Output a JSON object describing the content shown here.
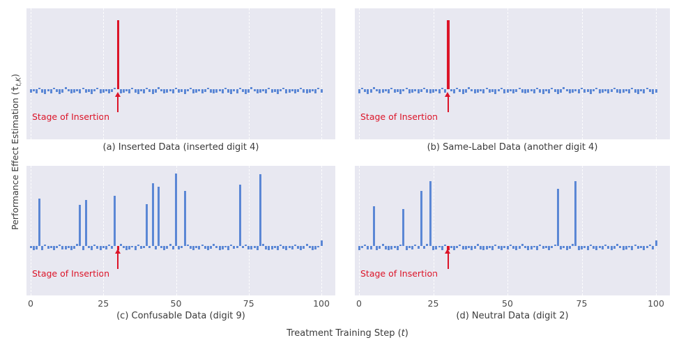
{
  "figure": {
    "ylabel": {
      "prefix": "Performance Effect Estimation (",
      "symbol": "τ̂",
      "subscript": "t,K",
      "suffix": ")"
    },
    "xlabel": {
      "prefix": "Treatment Training Step (",
      "italic": "t",
      "suffix": ")"
    }
  },
  "colors": {
    "bar": "#5b87d5",
    "highlight": "#dc1428",
    "panel_bg": "#e8e8f1",
    "grid": "#ffffff",
    "text": "#3a3a3a",
    "tick": "#4a4a4a"
  },
  "noise_pattern": [
    -0.045,
    -0.03,
    -0.055,
    0.02,
    -0.04,
    -0.06,
    -0.025,
    -0.05,
    0.018,
    -0.035,
    -0.058,
    -0.042,
    0.024,
    -0.03,
    -0.052,
    -0.046,
    -0.022,
    -0.057,
    0.02,
    -0.04,
    -0.033,
    -0.06,
    -0.028,
    0.016,
    -0.05,
    -0.044,
    -0.026,
    -0.056,
    -0.036,
    0.022,
    -0.047,
    -0.052
  ],
  "chart_data": [
    {
      "id": "a",
      "type": "bar",
      "caption": "(a) Inserted Data (inserted digit 4)",
      "annotation": "Stage of Insertion",
      "x_range": [
        0,
        100
      ],
      "ylim": [
        -0.65,
        1.05
      ],
      "insertion_step": 30,
      "insertion_value": 0.9,
      "noise_offset": 0,
      "gridlines": [
        0,
        25,
        50,
        75,
        100
      ],
      "xticks": [],
      "spikes": {}
    },
    {
      "id": "b",
      "type": "bar",
      "caption": "(b) Same-Label Data (another digit 4)",
      "annotation": "Stage of Insertion",
      "x_range": [
        0,
        100
      ],
      "ylim": [
        -0.65,
        1.05
      ],
      "insertion_step": 30,
      "insertion_value": 0.9,
      "noise_offset": 7,
      "gridlines": [
        0,
        25,
        50,
        75,
        100
      ],
      "xticks": [],
      "spikes": {}
    },
    {
      "id": "c",
      "type": "bar",
      "caption": "(c) Confusable Data (digit 9)",
      "annotation": "Stage of Insertion",
      "x_range": [
        0,
        100
      ],
      "ylim": [
        -0.65,
        1.05
      ],
      "insertion_step": 30,
      "insertion_value": -0.06,
      "noise_offset": 13,
      "gridlines": [
        0,
        25,
        50,
        75,
        100
      ],
      "xticks": [
        0,
        25,
        50,
        75,
        100
      ],
      "spikes": {
        "3": 0.62,
        "17": 0.54,
        "19": 0.6,
        "29": 0.66,
        "40": 0.55,
        "42": 0.82,
        "44": 0.78,
        "50": 0.95,
        "53": 0.72,
        "72": 0.8,
        "79": 0.94,
        "100": 0.07
      }
    },
    {
      "id": "d",
      "type": "bar",
      "caption": "(d) Neutral Data (digit 2)",
      "annotation": "Stage of Insertion",
      "x_range": [
        0,
        100
      ],
      "ylim": [
        -0.65,
        1.05
      ],
      "insertion_step": 30,
      "insertion_value": -0.06,
      "noise_offset": 21,
      "gridlines": [
        0,
        25,
        50,
        75,
        100
      ],
      "xticks": [
        0,
        25,
        50,
        75,
        100
      ],
      "spikes": {
        "5": 0.52,
        "15": 0.48,
        "21": 0.72,
        "24": 0.85,
        "67": 0.75,
        "73": 0.85,
        "100": 0.07
      }
    }
  ]
}
